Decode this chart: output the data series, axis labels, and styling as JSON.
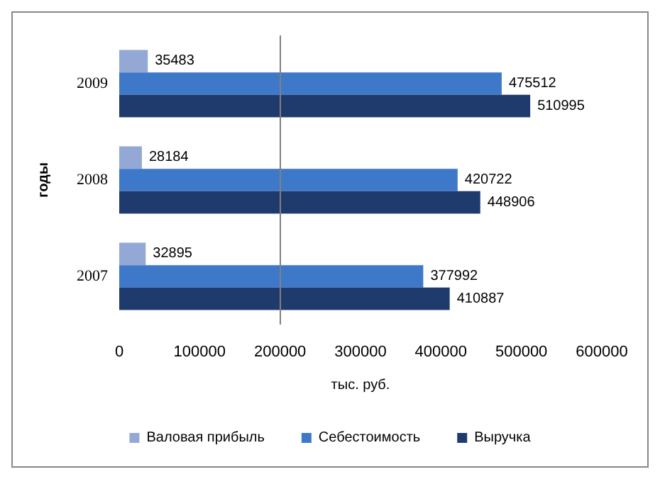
{
  "chart_data": {
    "type": "bar",
    "orientation": "horizontal",
    "xlabel": "тыс. руб.",
    "ylabel": "годы",
    "categories": [
      "2009",
      "2008",
      "2007"
    ],
    "series": [
      {
        "name": "Валовая прибыль",
        "color": "#94a8d6",
        "values": [
          35483,
          28184,
          32895
        ]
      },
      {
        "name": "Себестоимость",
        "color": "#3d78c9",
        "values": [
          475512,
          420722,
          377992
        ]
      },
      {
        "name": "Выручка",
        "color": "#1f3b6e",
        "values": [
          510995,
          448906,
          410887
        ]
      }
    ],
    "xlim": [
      0,
      600000
    ],
    "xticks": [
      0,
      100000,
      200000,
      300000,
      400000,
      500000,
      600000
    ],
    "ref_lines": [
      {
        "axis": "x",
        "value": 200000,
        "color": "#808080"
      }
    ],
    "grid": false,
    "legend": "bottom",
    "data_labels": true
  }
}
